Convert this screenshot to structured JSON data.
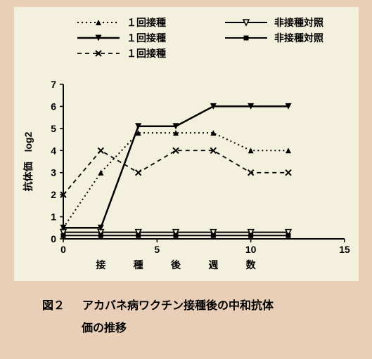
{
  "background_outer": "#e9cfb8",
  "background_panel": "#f3f0de",
  "plot_bg": "#f3f0de",
  "axis_color": "#000000",
  "tick_fontsize": 14,
  "label_fontsize": 14,
  "legend_fontsize": 14,
  "caption_fontsize": 16,
  "x_axis": {
    "min": 0,
    "max": 15,
    "ticks": [
      0,
      5,
      10,
      15
    ],
    "label_chars": [
      "接",
      "種",
      "後",
      "週",
      "数"
    ],
    "label_positions_x": [
      2,
      4,
      6,
      8,
      10
    ]
  },
  "y_axis": {
    "min": 0,
    "max": 7,
    "ticks": [
      0,
      1,
      2,
      3,
      4,
      5,
      6,
      7
    ],
    "label": "抗体価　log2",
    "label_fontsize": 14
  },
  "series": [
    {
      "name": "series1-vacc-dotted-tri-up",
      "legend_label": "１回接種",
      "color": "#000000",
      "line_style": "dotted",
      "line_width": 2,
      "marker": "triangle-up-filled",
      "marker_size": 8,
      "x": [
        0,
        2,
        4,
        6,
        8,
        10,
        12
      ],
      "y": [
        0.5,
        3.0,
        4.8,
        4.8,
        4.8,
        4.0,
        4.0
      ]
    },
    {
      "name": "series2-control-open-tri-down",
      "legend_label": "非接種対照",
      "color": "#000000",
      "line_style": "solid",
      "line_width": 2,
      "marker": "triangle-down-open",
      "marker_size": 8,
      "x": [
        0,
        2,
        4,
        6,
        8,
        10,
        12
      ],
      "y": [
        0.3,
        0.3,
        0.3,
        0.3,
        0.3,
        0.3,
        0.3
      ]
    },
    {
      "name": "series3-vacc-solid-tri-down",
      "legend_label": "１回接種",
      "color": "#000000",
      "line_style": "solid",
      "line_width": 2.5,
      "marker": "triangle-down-filled",
      "marker_size": 9,
      "x": [
        0,
        2,
        4,
        6,
        8,
        10,
        12
      ],
      "y": [
        0.5,
        0.5,
        5.1,
        5.1,
        6.0,
        6.0,
        6.0
      ]
    },
    {
      "name": "series4-control-square",
      "legend_label": "非接種対照",
      "color": "#000000",
      "line_style": "solid",
      "line_width": 2,
      "marker": "square-filled",
      "marker_size": 7,
      "x": [
        0,
        2,
        4,
        6,
        8,
        10,
        12
      ],
      "y": [
        0.15,
        0.15,
        0.15,
        0.15,
        0.15,
        0.15,
        0.15
      ]
    },
    {
      "name": "series5-vacc-dash-x",
      "legend_label": "１回接種",
      "color": "#000000",
      "line_style": "dashed",
      "line_width": 1.8,
      "marker": "x-mark",
      "marker_size": 8,
      "x": [
        0,
        2,
        4,
        6,
        8,
        10,
        12
      ],
      "y": [
        2.0,
        4.0,
        3.0,
        4.0,
        4.0,
        3.0,
        3.0
      ]
    }
  ],
  "legend": {
    "rows": [
      [
        0,
        1
      ],
      [
        2,
        3
      ],
      [
        4
      ]
    ]
  },
  "caption": {
    "prefix": "図２",
    "line1": "アカバネ病ワクチン接種後の中和抗体",
    "line2": "価の推移"
  }
}
